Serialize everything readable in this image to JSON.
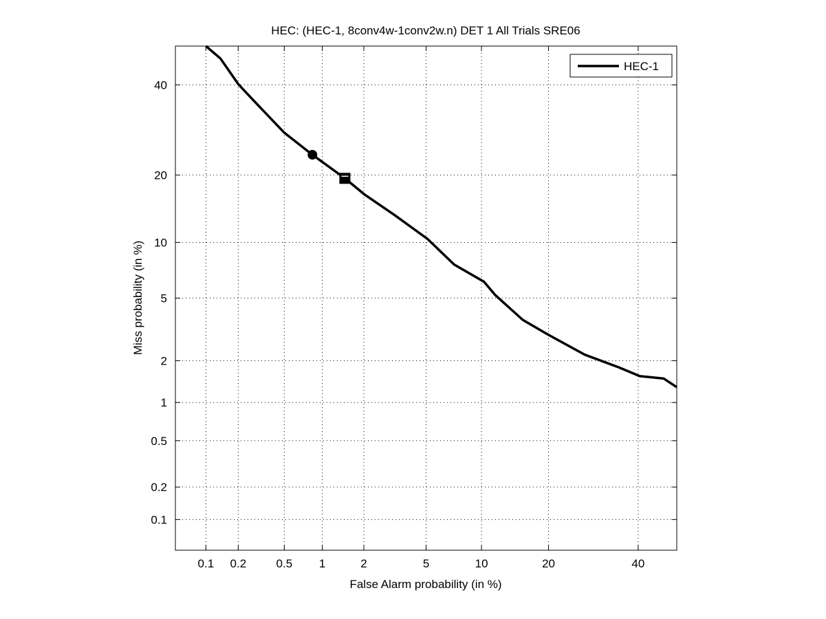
{
  "chart_data": {
    "type": "line",
    "title": "HEC: (HEC-1, 8conv4w-1conv2w.n) DET 1 All Trials SRE06",
    "xlabel": "False Alarm probability (in %)",
    "ylabel": "Miss probability (in %)",
    "xscale": "probit",
    "yscale": "probit",
    "xlim": [
      0.05,
      50
    ],
    "ylim": [
      0.05,
      50
    ],
    "grid": true,
    "legend_position": "top-right",
    "xticks": [
      0.1,
      0.2,
      0.5,
      1,
      2,
      5,
      10,
      20,
      40
    ],
    "xtick_labels": [
      "0.1",
      "0.2",
      "0.5",
      "1",
      "2",
      "5",
      "10",
      "20",
      "40"
    ],
    "yticks": [
      0.1,
      0.2,
      0.5,
      1,
      2,
      5,
      10,
      20,
      40
    ],
    "ytick_labels": [
      "0.1",
      "0.2",
      "0.5",
      "1",
      "2",
      "5",
      "10",
      "20",
      "40"
    ],
    "series": [
      {
        "name": "HEC-1",
        "color": "#000000",
        "x": [
          0.1,
          0.137,
          0.2,
          0.26,
          0.5,
          0.84,
          1.47,
          2.03,
          3.2,
          5.1,
          7.2,
          10.3,
          11.7,
          15.6,
          19.8,
          27.3,
          35.2,
          40.4,
          46.6,
          50
        ],
        "y": [
          50,
          46.8,
          40.2,
          36.8,
          28.6,
          23.9,
          19.4,
          16.6,
          13.5,
          10.4,
          7.7,
          6.2,
          5.2,
          3.7,
          3.0,
          2.2,
          1.8,
          1.56,
          1.5,
          1.3
        ]
      }
    ],
    "markers": [
      {
        "name": "min-dcf-point",
        "shape": "circle",
        "x": 0.84,
        "y": 23.9
      },
      {
        "name": "actual-dcf-point",
        "shape": "square",
        "x": 1.47,
        "y": 19.4
      }
    ]
  }
}
